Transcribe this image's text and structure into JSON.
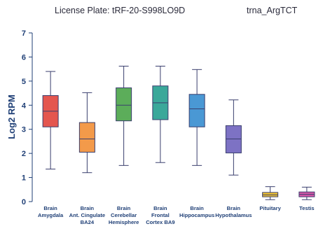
{
  "header": {
    "license_plate": "License Plate: tRF-20-S998LO9D",
    "trna": "trna_ArgTCT"
  },
  "chart_data": {
    "type": "box",
    "title": "",
    "xlabel": "",
    "ylabel": "Log2 RPM",
    "ylim": [
      0,
      7
    ],
    "yticks": [
      0,
      1,
      2,
      3,
      4,
      5,
      6,
      7
    ],
    "grid": false,
    "categories": [
      [
        "Brain",
        "Amygdala"
      ],
      [
        "Brain",
        "Ant. Cingulate",
        "BA24"
      ],
      [
        "Brain",
        "Cerebellar",
        "Hemisphere"
      ],
      [
        "Brain",
        "Frontal",
        "Cortex BA9"
      ],
      [
        "Brain",
        "Hippocampus"
      ],
      [
        "Brain",
        "Hypothalamus"
      ],
      [
        "Pituitary"
      ],
      [
        "Testis"
      ]
    ],
    "boxes": [
      {
        "whisker_low": 1.35,
        "q1": 3.1,
        "median": 3.75,
        "q3": 4.4,
        "whisker_high": 5.4,
        "color": "#e4564f"
      },
      {
        "whisker_low": 1.2,
        "q1": 2.05,
        "median": 2.6,
        "q3": 3.28,
        "whisker_high": 4.52,
        "color": "#f39a4a"
      },
      {
        "whisker_low": 1.5,
        "q1": 3.35,
        "median": 4.0,
        "q3": 4.72,
        "whisker_high": 5.62,
        "color": "#5cad5a"
      },
      {
        "whisker_low": 1.62,
        "q1": 3.4,
        "median": 4.1,
        "q3": 4.8,
        "whisker_high": 5.62,
        "color": "#3aa89a"
      },
      {
        "whisker_low": 1.5,
        "q1": 3.1,
        "median": 3.85,
        "q3": 4.45,
        "whisker_high": 5.48,
        "color": "#4a98d4"
      },
      {
        "whisker_low": 1.1,
        "q1": 2.02,
        "median": 2.6,
        "q3": 3.15,
        "whisker_high": 4.22,
        "color": "#7d72c4"
      },
      {
        "whisker_low": 0.08,
        "q1": 0.2,
        "median": 0.28,
        "q3": 0.38,
        "whisker_high": 0.62,
        "color": "#f0c232"
      },
      {
        "whisker_low": 0.08,
        "q1": 0.2,
        "median": 0.3,
        "q3": 0.4,
        "whisker_high": 0.6,
        "color": "#d656a8"
      }
    ]
  }
}
